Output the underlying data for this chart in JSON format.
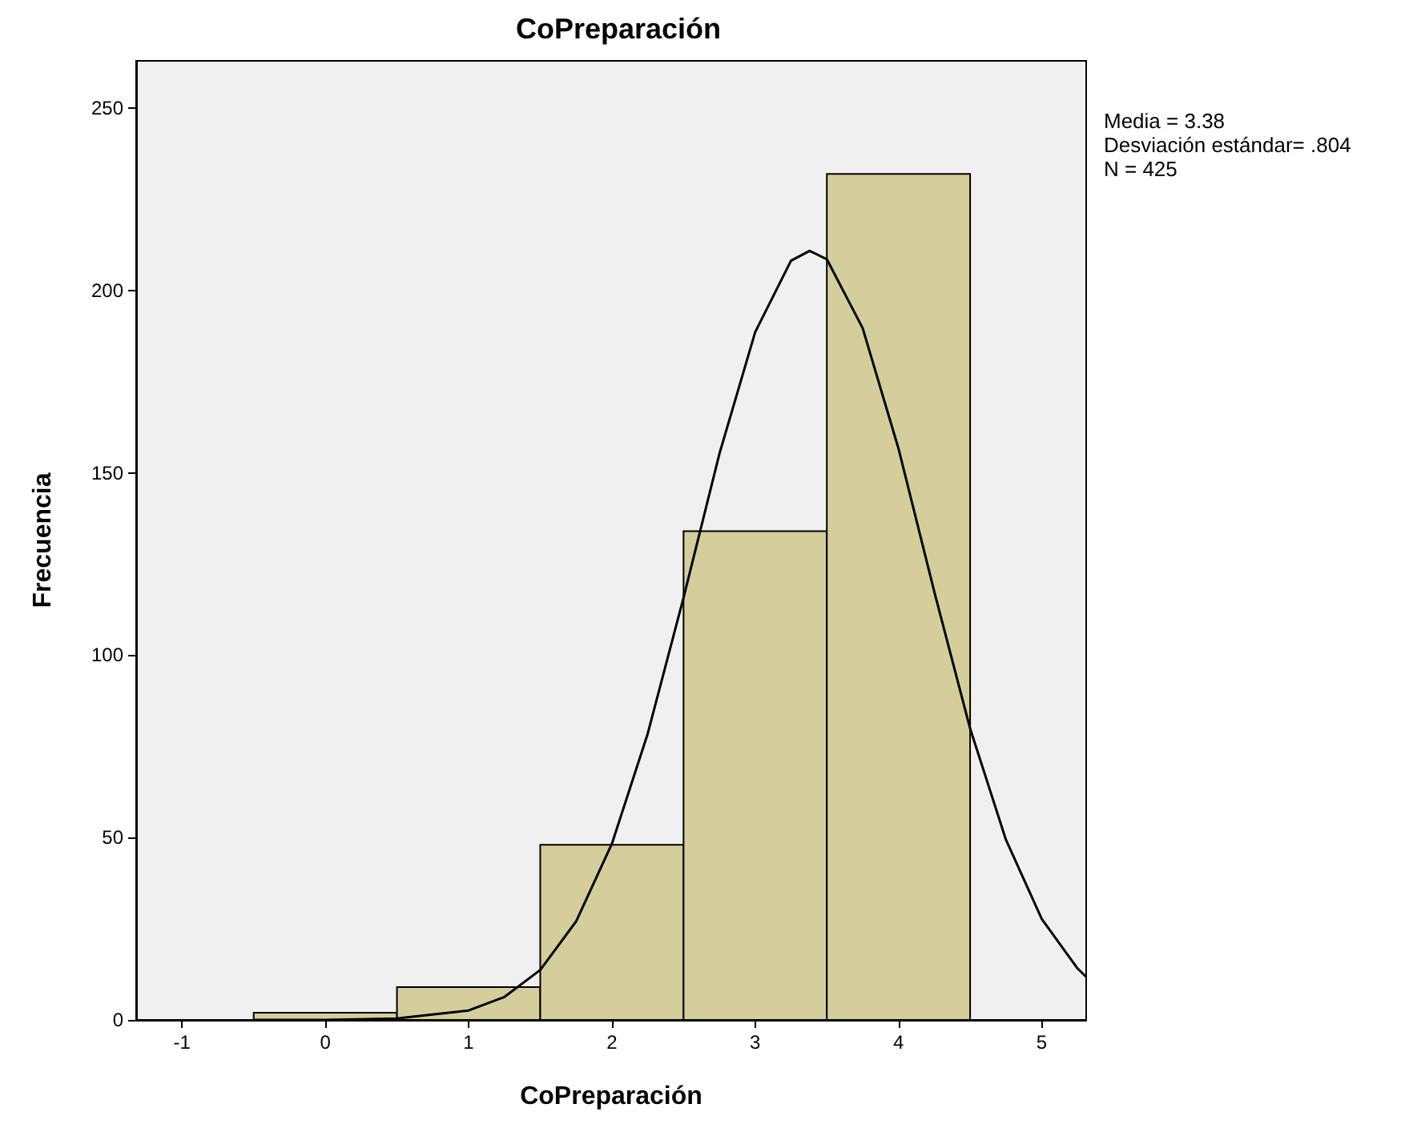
{
  "chart_data": {
    "type": "histogram",
    "title": "CoPreparación",
    "xlabel": "CoPreparación",
    "ylabel": "Frecuencia",
    "annotations": [
      "Media = 3.38",
      "Desviación estándar= .804",
      "N = 425"
    ],
    "bins": [
      -0.5,
      0.5,
      1.5,
      2.5,
      3.5,
      4.5
    ],
    "values": [
      2,
      9,
      48,
      134,
      232
    ],
    "color": "#d3ce9b",
    "series": [
      {
        "type": "line",
        "color": "#000000",
        "x": [
          -0.5,
          0,
          0.5,
          1,
          1.25,
          1.5,
          1.75,
          2,
          2.25,
          2.5,
          2.75,
          3,
          3.25,
          3.38,
          3.5,
          3.75,
          4,
          4.25,
          4.5,
          4.75,
          5,
          5.25,
          5.31
        ],
        "values": [
          0,
          0,
          0.4,
          2.6,
          6.3,
          13.7,
          27,
          48.3,
          78.5,
          115.8,
          155.2,
          188.6,
          208.2,
          210.9,
          208.6,
          189.7,
          156.7,
          117.4,
          79.9,
          49.4,
          27.7,
          14.1,
          11.8
        ]
      }
    ],
    "xlim": [
      -1.32,
      5.31
    ],
    "xticks": [
      -1,
      0,
      1,
      2,
      3,
      4,
      5
    ],
    "ylim": [
      0,
      263
    ],
    "yticks": [
      0,
      50,
      100,
      150,
      200,
      250
    ],
    "grid": false,
    "marker": "none",
    "line_style": "solid"
  }
}
